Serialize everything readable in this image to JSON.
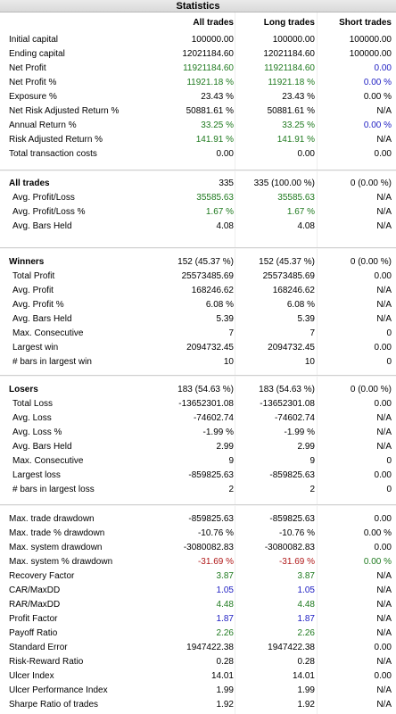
{
  "title": "Statistics",
  "columns": [
    "All trades",
    "Long trades",
    "Short trades"
  ],
  "colors": {
    "green": "#1f7a1f",
    "blue": "#1d1dc2",
    "red": "#b01818"
  },
  "sections": [
    {
      "rows": [
        {
          "label": "Initial capital",
          "values": [
            "100000.00",
            "100000.00",
            "100000.00"
          ],
          "colors": [
            "",
            "",
            ""
          ]
        },
        {
          "label": "Ending capital",
          "values": [
            "12021184.60",
            "12021184.60",
            "100000.00"
          ],
          "colors": [
            "",
            "",
            ""
          ]
        },
        {
          "label": "Net Profit",
          "values": [
            "11921184.60",
            "11921184.60",
            "0.00"
          ],
          "colors": [
            "green",
            "green",
            "blue"
          ]
        },
        {
          "label": "Net Profit %",
          "values": [
            "11921.18 %",
            "11921.18 %",
            "0.00 %"
          ],
          "colors": [
            "green",
            "green",
            "blue"
          ]
        },
        {
          "label": "Exposure %",
          "values": [
            "23.43 %",
            "23.43 %",
            "0.00 %"
          ],
          "colors": [
            "",
            "",
            ""
          ]
        },
        {
          "label": "Net Risk Adjusted Return %",
          "values": [
            "50881.61 %",
            "50881.61 %",
            "N/A"
          ],
          "colors": [
            "",
            "",
            ""
          ]
        },
        {
          "label": "Annual Return %",
          "values": [
            "33.25 %",
            "33.25 %",
            "0.00 %"
          ],
          "colors": [
            "green",
            "green",
            "blue"
          ]
        },
        {
          "label": "Risk Adjusted Return %",
          "values": [
            "141.91 %",
            "141.91 %",
            "N/A"
          ],
          "colors": [
            "green",
            "green",
            ""
          ]
        },
        {
          "label": "Total transaction costs",
          "values": [
            "0.00",
            "0.00",
            "0.00"
          ],
          "colors": [
            "",
            "",
            ""
          ]
        }
      ]
    },
    {
      "rows": [
        {
          "label": "All trades",
          "bold": true,
          "values": [
            "335",
            "335 (100.00 %)",
            "0 (0.00 %)"
          ],
          "colors": [
            "",
            "",
            ""
          ]
        },
        {
          "label": "Avg. Profit/Loss",
          "indent": true,
          "values": [
            "35585.63",
            "35585.63",
            "N/A"
          ],
          "colors": [
            "green",
            "green",
            ""
          ]
        },
        {
          "label": "Avg. Profit/Loss %",
          "indent": true,
          "values": [
            "1.67 %",
            "1.67 %",
            "N/A"
          ],
          "colors": [
            "green",
            "green",
            ""
          ]
        },
        {
          "label": "Avg. Bars Held",
          "indent": true,
          "values": [
            "4.08",
            "4.08",
            "N/A"
          ],
          "colors": [
            "",
            "",
            ""
          ]
        }
      ]
    },
    {
      "rows": [
        {
          "label": "Winners",
          "bold": true,
          "values": [
            "152 (45.37 %)",
            "152 (45.37 %)",
            "0 (0.00 %)"
          ],
          "colors": [
            "",
            "",
            ""
          ]
        },
        {
          "label": "Total Profit",
          "indent": true,
          "values": [
            "25573485.69",
            "25573485.69",
            "0.00"
          ],
          "colors": [
            "",
            "",
            ""
          ]
        },
        {
          "label": "Avg. Profit",
          "indent": true,
          "values": [
            "168246.62",
            "168246.62",
            "N/A"
          ],
          "colors": [
            "",
            "",
            ""
          ]
        },
        {
          "label": "Avg. Profit %",
          "indent": true,
          "values": [
            "6.08 %",
            "6.08 %",
            "N/A"
          ],
          "colors": [
            "",
            "",
            ""
          ]
        },
        {
          "label": "Avg. Bars Held",
          "indent": true,
          "values": [
            "5.39",
            "5.39",
            "N/A"
          ],
          "colors": [
            "",
            "",
            ""
          ]
        },
        {
          "label": "Max. Consecutive",
          "indent": true,
          "values": [
            "7",
            "7",
            "0"
          ],
          "colors": [
            "",
            "",
            ""
          ]
        },
        {
          "label": "Largest win",
          "indent": true,
          "values": [
            "2094732.45",
            "2094732.45",
            "0.00"
          ],
          "colors": [
            "",
            "",
            ""
          ]
        },
        {
          "label": "# bars in largest win",
          "indent": true,
          "values": [
            "10",
            "10",
            "0"
          ],
          "colors": [
            "",
            "",
            ""
          ]
        }
      ]
    },
    {
      "rows": [
        {
          "label": "Losers",
          "bold": true,
          "values": [
            "183 (54.63 %)",
            "183 (54.63 %)",
            "0 (0.00 %)"
          ],
          "colors": [
            "",
            "",
            ""
          ]
        },
        {
          "label": "Total Loss",
          "indent": true,
          "values": [
            "-13652301.08",
            "-13652301.08",
            "0.00"
          ],
          "colors": [
            "",
            "",
            ""
          ]
        },
        {
          "label": "Avg. Loss",
          "indent": true,
          "values": [
            "-74602.74",
            "-74602.74",
            "N/A"
          ],
          "colors": [
            "",
            "",
            ""
          ]
        },
        {
          "label": "Avg. Loss %",
          "indent": true,
          "values": [
            "-1.99 %",
            "-1.99 %",
            "N/A"
          ],
          "colors": [
            "",
            "",
            ""
          ]
        },
        {
          "label": "Avg. Bars Held",
          "indent": true,
          "values": [
            "2.99",
            "2.99",
            "N/A"
          ],
          "colors": [
            "",
            "",
            ""
          ]
        },
        {
          "label": "Max. Consecutive",
          "indent": true,
          "values": [
            "9",
            "9",
            "0"
          ],
          "colors": [
            "",
            "",
            ""
          ]
        },
        {
          "label": "Largest loss",
          "indent": true,
          "values": [
            "-859825.63",
            "-859825.63",
            "0.00"
          ],
          "colors": [
            "",
            "",
            ""
          ]
        },
        {
          "label": "# bars in largest loss",
          "indent": true,
          "values": [
            "2",
            "2",
            "0"
          ],
          "colors": [
            "",
            "",
            ""
          ]
        }
      ]
    },
    {
      "rows": [
        {
          "label": "Max. trade drawdown",
          "values": [
            "-859825.63",
            "-859825.63",
            "0.00"
          ],
          "colors": [
            "",
            "",
            ""
          ]
        },
        {
          "label": "Max. trade % drawdown",
          "values": [
            "-10.76 %",
            "-10.76 %",
            "0.00 %"
          ],
          "colors": [
            "",
            "",
            ""
          ]
        },
        {
          "label": "Max. system drawdown",
          "values": [
            "-3080082.83",
            "-3080082.83",
            "0.00"
          ],
          "colors": [
            "",
            "",
            ""
          ]
        },
        {
          "label": "Max. system % drawdown",
          "values": [
            "-31.69 %",
            "-31.69 %",
            "0.00 %"
          ],
          "colors": [
            "red",
            "red",
            "green"
          ]
        },
        {
          "label": "Recovery Factor",
          "values": [
            "3.87",
            "3.87",
            "N/A"
          ],
          "colors": [
            "green",
            "green",
            ""
          ]
        },
        {
          "label": "CAR/MaxDD",
          "values": [
            "1.05",
            "1.05",
            "N/A"
          ],
          "colors": [
            "blue",
            "blue",
            ""
          ]
        },
        {
          "label": "RAR/MaxDD",
          "values": [
            "4.48",
            "4.48",
            "N/A"
          ],
          "colors": [
            "green",
            "green",
            ""
          ]
        },
        {
          "label": "Profit Factor",
          "values": [
            "1.87",
            "1.87",
            "N/A"
          ],
          "colors": [
            "blue",
            "blue",
            ""
          ]
        },
        {
          "label": "Payoff Ratio",
          "values": [
            "2.26",
            "2.26",
            "N/A"
          ],
          "colors": [
            "green",
            "green",
            ""
          ]
        },
        {
          "label": "Standard Error",
          "values": [
            "1947422.38",
            "1947422.38",
            "0.00"
          ],
          "colors": [
            "",
            "",
            ""
          ]
        },
        {
          "label": "Risk-Reward Ratio",
          "values": [
            "0.28",
            "0.28",
            "N/A"
          ],
          "colors": [
            "",
            "",
            ""
          ]
        },
        {
          "label": "Ulcer Index",
          "values": [
            "14.01",
            "14.01",
            "0.00"
          ],
          "colors": [
            "",
            "",
            ""
          ]
        },
        {
          "label": "Ulcer Performance Index",
          "values": [
            "1.99",
            "1.99",
            "N/A"
          ],
          "colors": [
            "",
            "",
            ""
          ]
        },
        {
          "label": "Sharpe Ratio of trades",
          "values": [
            "1.92",
            "1.92",
            "N/A"
          ],
          "colors": [
            "",
            "",
            ""
          ]
        }
      ]
    }
  ]
}
